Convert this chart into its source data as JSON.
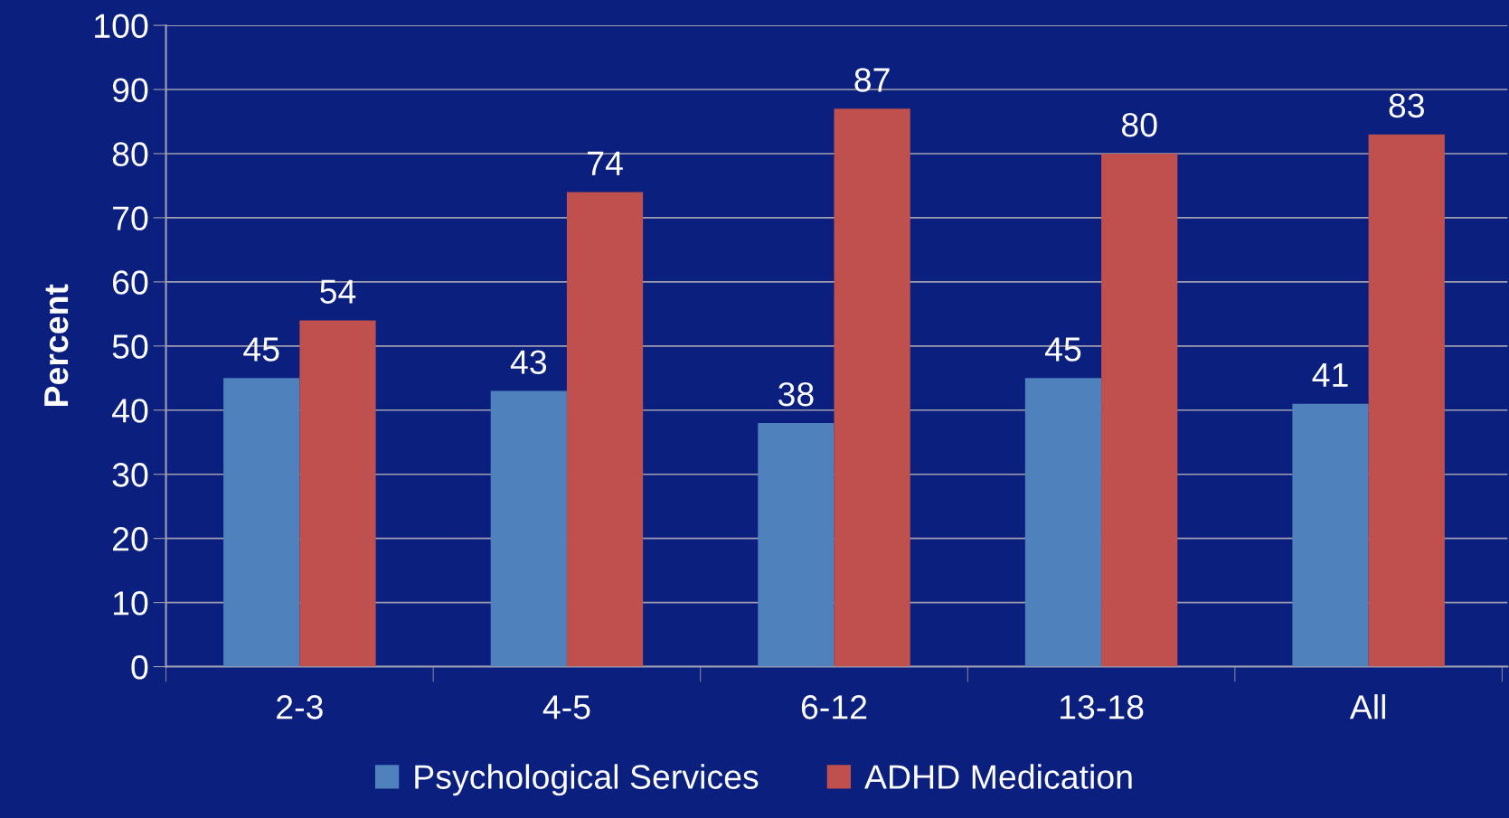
{
  "chart_data": {
    "type": "bar",
    "ylabel": "Percent",
    "categories": [
      "2-3",
      "4-5",
      "6-12",
      "13-18",
      "All"
    ],
    "series": [
      {
        "name": "Psychological Services",
        "color": "#4f81bd",
        "values": [
          45,
          43,
          38,
          45,
          41
        ]
      },
      {
        "name": "ADHD Medication",
        "color": "#c0504d",
        "values": [
          54,
          74,
          87,
          80,
          83
        ]
      }
    ],
    "ylim": [
      0,
      100
    ],
    "yticks": [
      0,
      10,
      20,
      30,
      40,
      50,
      60,
      70,
      80,
      90,
      100
    ],
    "grid": "y",
    "legend": "bottom",
    "data_labels": true
  }
}
